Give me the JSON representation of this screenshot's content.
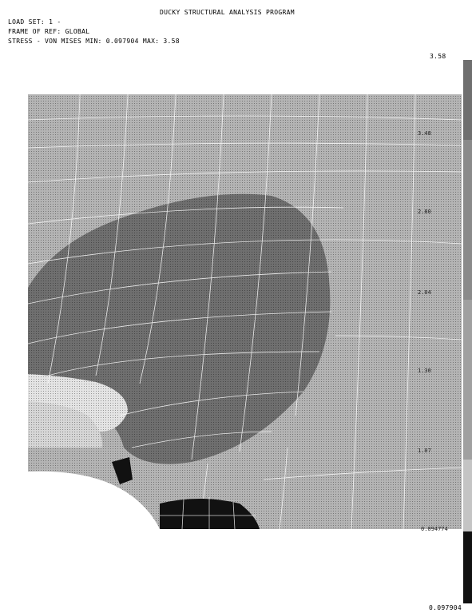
{
  "header": {
    "title": "DUCKY STRUCTURAL ANALYSIS PROGRAM",
    "load_set": "LOAD SET: 1 -",
    "frame_of_ref": "FRAME OF REF: GLOBAL",
    "stress_line": "STRESS - VON MISES MIN: 0.097904 MAX: 3.58"
  },
  "legend": {
    "max_label": "3.58",
    "min_label": "0.097904",
    "scale_labels": [
      "3.48",
      "2.80",
      "2.04",
      "1.30",
      "1.07",
      "0.094774"
    ]
  },
  "colors": {
    "background": "#ffffff",
    "plate": "#b4b4b4",
    "high_stress": "#6f6f6f",
    "low_stress": "#e4e4e4",
    "peak": "#111111",
    "mesh": "#ffffff"
  }
}
